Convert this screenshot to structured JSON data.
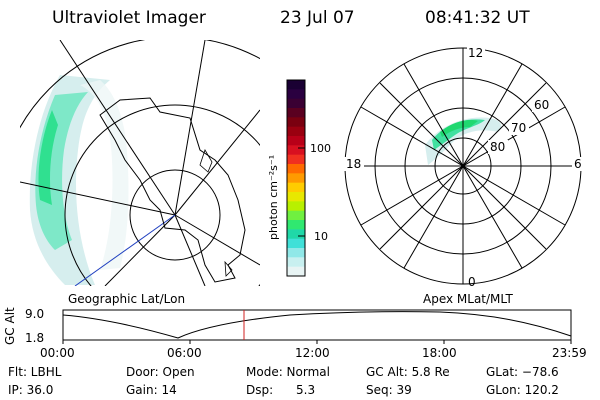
{
  "header": {
    "instrument": "Ultraviolet Imager",
    "date": "23 Jul 07",
    "time": "08:41:32 UT"
  },
  "colorbar": {
    "unit_label": "photon cm⁻²s⁻¹",
    "ticks": [
      "100",
      "10"
    ],
    "colors": [
      "#1a0033",
      "#2a0040",
      "#3a0033",
      "#5a0020",
      "#7a0010",
      "#9a0010",
      "#b80018",
      "#d81020",
      "#f03020",
      "#ff6a00",
      "#ff9a00",
      "#ffcc00",
      "#e8e800",
      "#b8f000",
      "#70f040",
      "#30e870",
      "#20d8a8",
      "#40e0d8",
      "#90e8e8",
      "#c8f0f0",
      "#e8f4f4"
    ]
  },
  "left_map": {
    "label": "Geographic Lat/Lon"
  },
  "right_map": {
    "label": "Apex MLat/MLT",
    "mlt_labels": {
      "top": "12",
      "bottom": "0",
      "left": "18",
      "right": "6"
    },
    "lat_labels": [
      "60",
      "70",
      "80"
    ]
  },
  "altitude_plot": {
    "ylabel": "GC Alt",
    "yticks": [
      "9.0",
      "1.8"
    ],
    "xticks": [
      "00:00",
      "06:00",
      "12:00",
      "18:00",
      "23:59"
    ],
    "marker_time": "08:41"
  },
  "info": {
    "col1": [
      "Flt: LBHL",
      "IP: 36.0"
    ],
    "col2": [
      "Door: Open",
      "Gain: 14"
    ],
    "col3": [
      "Mode: Normal",
      "Dsp:      5.3"
    ],
    "col4": [
      "GC Alt: 5.8 Re",
      "Seq: 39"
    ],
    "col5": [
      "GLat: −78.6",
      "GLon: 120.2"
    ]
  }
}
